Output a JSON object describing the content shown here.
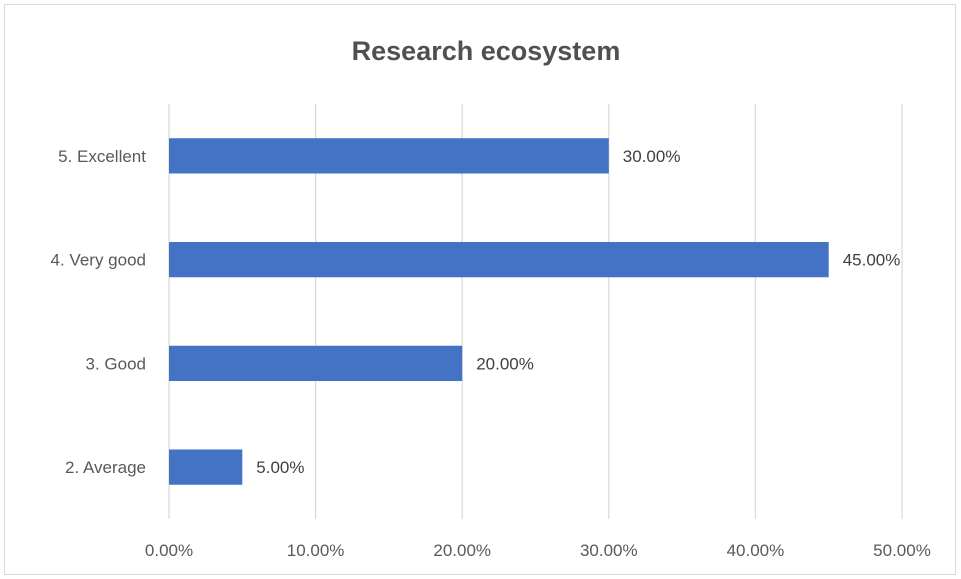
{
  "chart_data": {
    "type": "bar",
    "orientation": "horizontal",
    "title": "Research ecosystem",
    "categories": [
      "5. Excellent",
      "4. Very good",
      "3. Good",
      "2. Average"
    ],
    "values": [
      30,
      45,
      20,
      5
    ],
    "data_labels": [
      "30.00%",
      "45.00%",
      "20.00%",
      "5.00%"
    ],
    "x_ticks": [
      0,
      10,
      20,
      30,
      40,
      50
    ],
    "x_tick_labels": [
      "0.00%",
      "10.00%",
      "20.00%",
      "30.00%",
      "40.00%",
      "50.00%"
    ],
    "xlim": [
      0,
      50
    ],
    "xlabel": "",
    "ylabel": "",
    "grid": true,
    "legend": "none",
    "bar_color": "#4472C4",
    "gridline_color": "#d9d9d9"
  }
}
